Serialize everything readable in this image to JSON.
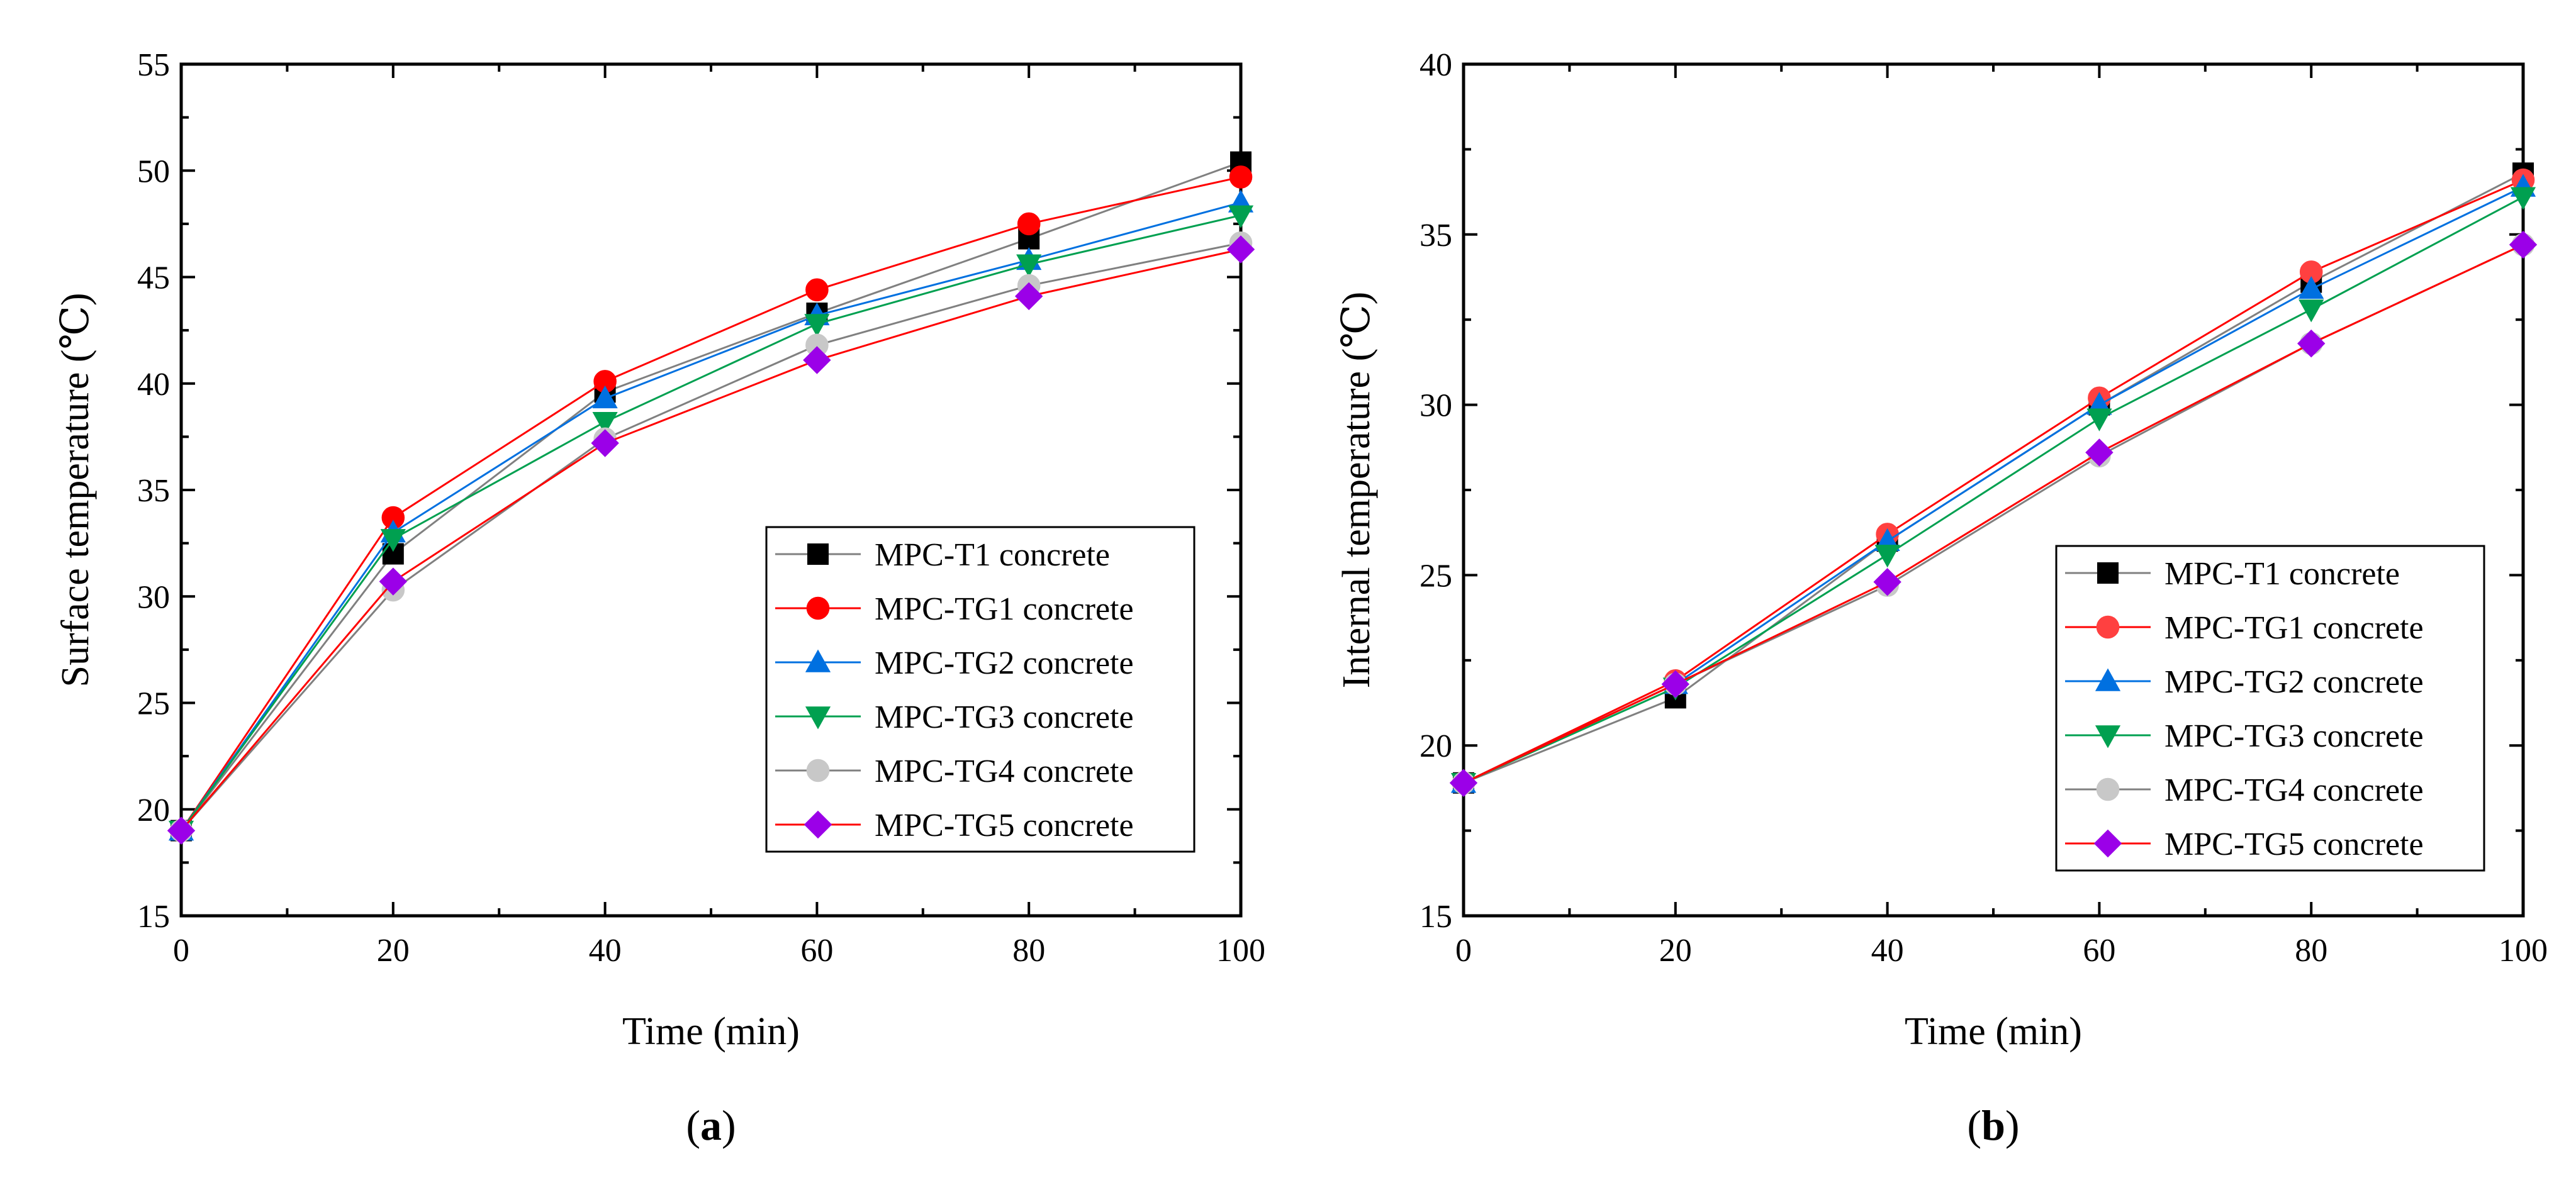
{
  "chart_data": [
    {
      "type": "line",
      "panel": "a",
      "caption_letter": "a",
      "xlabel": "Time (min)",
      "ylabel": "Surface temperature (℃)",
      "xlim": [
        0,
        100
      ],
      "ylim": [
        15,
        55
      ],
      "xticks": [
        0,
        20,
        40,
        60,
        80,
        100
      ],
      "yticks": [
        15,
        20,
        25,
        30,
        35,
        40,
        45,
        50,
        55
      ],
      "x": [
        0,
        20,
        40,
        60,
        80,
        100
      ],
      "legend_position": "lower-right",
      "series": [
        {
          "name": "MPC-T1 concrete",
          "color": "#000000",
          "marker": "square",
          "line_color": "#808080",
          "values": [
            19.0,
            32.0,
            39.6,
            43.3,
            46.8,
            50.4
          ]
        },
        {
          "name": "MPC-TG1 concrete",
          "color": "#ff0000",
          "marker": "circle",
          "line_color": "#ff0000",
          "values": [
            19.0,
            33.7,
            40.1,
            44.4,
            47.5,
            49.7
          ]
        },
        {
          "name": "MPC-TG2 concrete",
          "color": "#0070e0",
          "marker": "triangle-up",
          "line_color": "#0070e0",
          "values": [
            19.0,
            33.0,
            39.3,
            43.2,
            45.8,
            48.5
          ]
        },
        {
          "name": "MPC-TG3 concrete",
          "color": "#00a050",
          "marker": "triangle-down",
          "line_color": "#00a050",
          "values": [
            19.0,
            32.7,
            38.2,
            42.8,
            45.6,
            47.9
          ]
        },
        {
          "name": "MPC-TG4 concrete",
          "color": "#c8c8c8",
          "marker": "circle",
          "line_color": "#808080",
          "values": [
            19.0,
            30.3,
            37.4,
            41.8,
            44.6,
            46.6
          ]
        },
        {
          "name": "MPC-TG5 concrete",
          "color": "#9b00e8",
          "marker": "diamond",
          "line_color": "#ff0000",
          "values": [
            19.0,
            30.7,
            37.2,
            41.1,
            44.1,
            46.3
          ]
        }
      ]
    },
    {
      "type": "line",
      "panel": "b",
      "caption_letter": "b",
      "xlabel": "Time (min)",
      "ylabel": "Internal temperature (℃)",
      "xlim": [
        0,
        100
      ],
      "ylim": [
        15,
        40
      ],
      "xticks": [
        0,
        20,
        40,
        60,
        80,
        100
      ],
      "yticks": [
        15,
        20,
        25,
        30,
        35,
        40
      ],
      "x": [
        0,
        20,
        40,
        60,
        80,
        100
      ],
      "legend_position": "lower-right",
      "series": [
        {
          "name": "MPC-T1 concrete",
          "color": "#000000",
          "marker": "square",
          "line_color": "#808080",
          "values": [
            18.9,
            21.4,
            26.0,
            30.0,
            33.6,
            36.8
          ]
        },
        {
          "name": "MPC-TG1 concrete",
          "color": "#ff4040",
          "marker": "circle",
          "line_color": "#ff0000",
          "values": [
            18.9,
            21.9,
            26.2,
            30.2,
            33.9,
            36.6
          ]
        },
        {
          "name": "MPC-TG2 concrete",
          "color": "#0070e0",
          "marker": "triangle-up",
          "line_color": "#0070e0",
          "values": [
            18.9,
            21.8,
            26.0,
            30.0,
            33.4,
            36.4
          ]
        },
        {
          "name": "MPC-TG3 concrete",
          "color": "#00a050",
          "marker": "triangle-down",
          "line_color": "#00a050",
          "values": [
            18.9,
            21.7,
            25.6,
            29.6,
            32.8,
            36.1
          ]
        },
        {
          "name": "MPC-TG4 concrete",
          "color": "#c8c8c8",
          "marker": "circle",
          "line_color": "#808080",
          "values": [
            18.9,
            21.8,
            24.7,
            28.5,
            31.8,
            34.7
          ]
        },
        {
          "name": "MPC-TG5 concrete",
          "color": "#9b00e8",
          "marker": "diamond",
          "line_color": "#ff0000",
          "values": [
            18.9,
            21.8,
            24.8,
            28.6,
            31.8,
            34.7
          ]
        }
      ]
    }
  ]
}
